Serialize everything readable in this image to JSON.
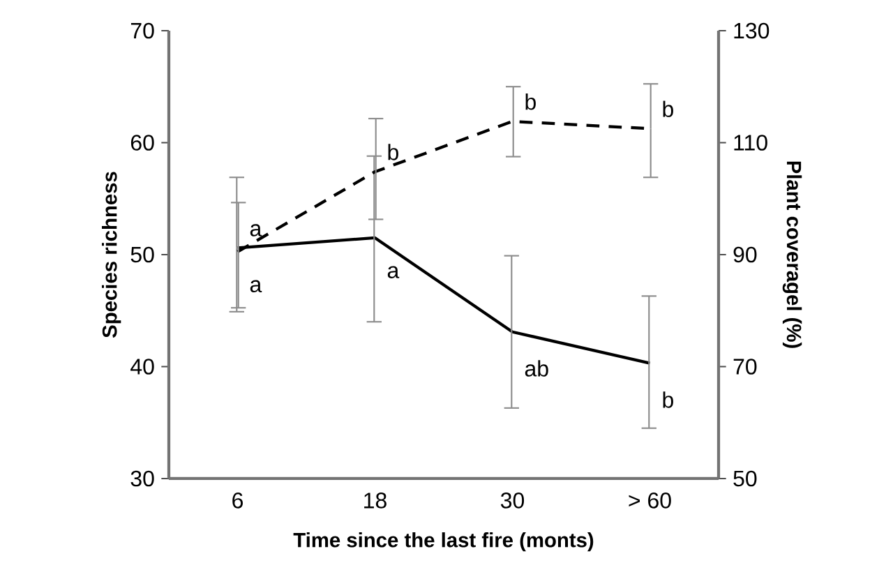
{
  "chart_data": {
    "type": "line",
    "xlabel": "Time since the last fire (monts)",
    "ylabel": "Species richness",
    "y2label": "Plant coveragel (%)",
    "categories": [
      "6",
      "18",
      "30",
      "> 60"
    ],
    "series": [
      {
        "color": "#000000",
        "line_style": "solid",
        "values": [
          50.6,
          51.5,
          43.1,
          40.3
        ],
        "errors": [
          [
            44.9,
            56.9
          ],
          [
            44.0,
            58.8
          ],
          [
            36.3,
            49.9
          ],
          [
            34.5,
            46.3
          ]
        ]
      },
      {
        "color": "#000000",
        "line_style": "dashed",
        "axis": "y2",
        "values": [
          90.5,
          104.8,
          113.8,
          112.5
        ],
        "errors": [
          [
            80.5,
            99.3
          ],
          [
            96.3,
            114.3
          ],
          [
            107.5,
            120.0
          ],
          [
            103.8,
            120.5
          ]
        ]
      }
    ],
    "ylim": [
      30,
      70
    ],
    "yticks": [
      30,
      40,
      50,
      60,
      70
    ],
    "y2lim": [
      50,
      130
    ],
    "y2ticks": [
      50,
      70,
      90,
      110,
      130
    ],
    "grid": false,
    "marker": "none",
    "annotations": [
      {
        "text": "a",
        "x": "6",
        "y": 50.25
      },
      {
        "text": "a",
        "x": "6",
        "y": 50.6
      },
      {
        "text": "b",
        "x": "18",
        "y": 57.4
      },
      {
        "text": "a",
        "x": "18",
        "y": 51.5
      },
      {
        "text": "b",
        "x": "30",
        "y": 61.9
      },
      {
        "text": "ab",
        "x": "30",
        "y": 43.1
      },
      {
        "text": "b",
        "x": "> 60",
        "y": 61.25
      },
      {
        "text": "b",
        "x": "> 60",
        "y": 40.3
      }
    ]
  }
}
